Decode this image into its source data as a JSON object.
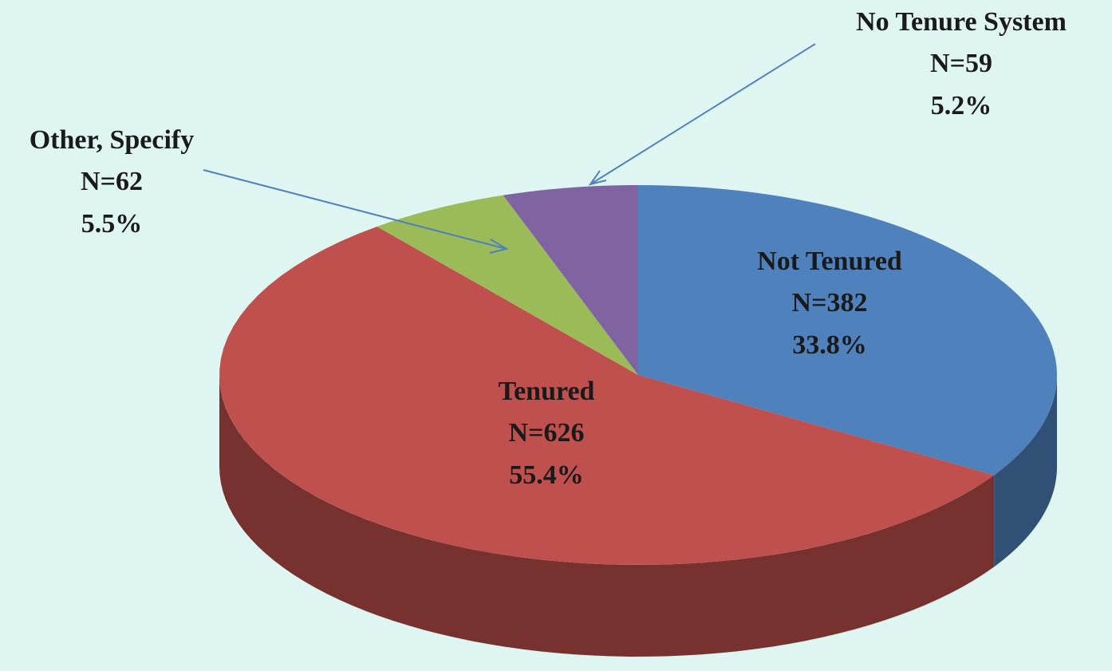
{
  "chart_data": {
    "type": "pie",
    "categories": [
      "Not Tenured",
      "Tenured",
      "Other, Specify",
      "No Tenure System"
    ],
    "values": [
      382,
      626,
      62,
      59
    ],
    "value_labels": [
      "N=382",
      "N=626",
      "N=62",
      "N=59"
    ],
    "percents": [
      33.8,
      55.4,
      5.5,
      5.2
    ],
    "percent_labels": [
      "33.8%",
      "55.4%",
      "5.5%",
      "5.2%"
    ],
    "colors": [
      "#4f81bd",
      "#c0504d",
      "#9bbb59",
      "#8064a2"
    ]
  }
}
